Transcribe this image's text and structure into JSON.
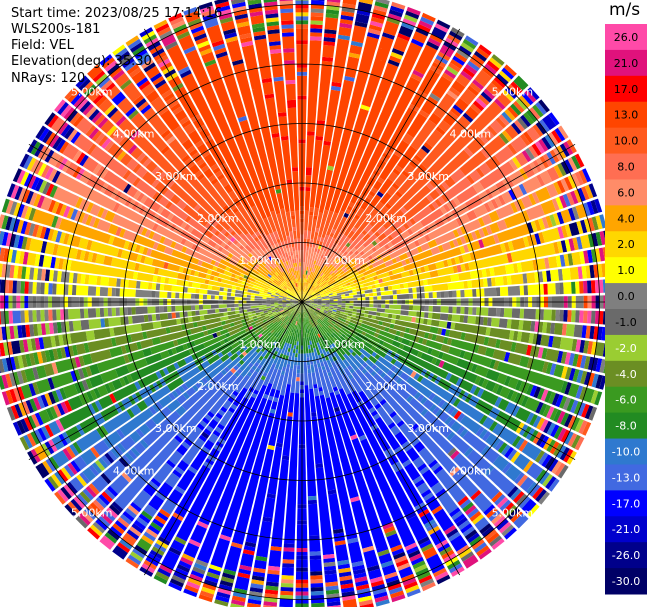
{
  "info": {
    "start_time": "Start time: 2023/08/25 17:14:16",
    "instrument": "WLS200s-181",
    "field": "Field: VEL",
    "elevation": "Elevation(deg): 35.30",
    "nrays": "NRays: 120"
  },
  "chart_data": {
    "type": "heatmap",
    "projection": "polar-ppi",
    "field": "VEL",
    "units": "m/s",
    "n_rays": 120,
    "range_rings_km": [
      1.0,
      2.0,
      3.0,
      4.0,
      5.0
    ],
    "ring_labels": [
      "1.00km",
      "2.00km",
      "3.00km",
      "4.00km",
      "5.00km"
    ],
    "max_range_km": 5.3,
    "radial_spokes_deg": [
      0,
      30,
      60,
      90,
      120,
      150,
      180,
      210,
      240,
      270,
      300,
      330
    ],
    "wind_pattern": {
      "toward_deg": 0,
      "max_speed_ms": 16,
      "coherent_range_km": 3.6,
      "description_values": "positive to north, negative to south"
    },
    "colorbar": {
      "ticks": [
        "26.0",
        "21.0",
        "17.0",
        "13.0",
        "10.0",
        "8.0",
        "6.0",
        "4.0",
        "2.0",
        "1.0",
        "0.0",
        "-1.0",
        "-2.0",
        "-4.0",
        "-6.0",
        "-8.0",
        "-10.0",
        "-13.0",
        "-17.0",
        "-21.0",
        "-26.0",
        "-30.0"
      ],
      "bins": [
        {
          "min": 26,
          "max": 30,
          "color": "#ff4aa8"
        },
        {
          "min": 21,
          "max": 26,
          "color": "#e0127c"
        },
        {
          "min": 17,
          "max": 21,
          "color": "#ff0000"
        },
        {
          "min": 13,
          "max": 17,
          "color": "#ff4500"
        },
        {
          "min": 10,
          "max": 13,
          "color": "#ff5a1e"
        },
        {
          "min": 8,
          "max": 10,
          "color": "#ff6e52"
        },
        {
          "min": 6,
          "max": 8,
          "color": "#ff8c68"
        },
        {
          "min": 4,
          "max": 6,
          "color": "#ffa500"
        },
        {
          "min": 2,
          "max": 4,
          "color": "#ffd700"
        },
        {
          "min": 1,
          "max": 2,
          "color": "#ffff00"
        },
        {
          "min": 0,
          "max": 1,
          "color": "#7f7f7f"
        },
        {
          "min": -1,
          "max": 0,
          "color": "#6a6a6a"
        },
        {
          "min": -2,
          "max": -1,
          "color": "#9acd32"
        },
        {
          "min": -4,
          "max": -2,
          "color": "#6b8e23"
        },
        {
          "min": -6,
          "max": -4,
          "color": "#3a9a20"
        },
        {
          "min": -8,
          "max": -6,
          "color": "#228b22"
        },
        {
          "min": -10,
          "max": -8,
          "color": "#2f79cf"
        },
        {
          "min": -13,
          "max": -10,
          "color": "#4169e1"
        },
        {
          "min": -17,
          "max": -13,
          "color": "#0000ff"
        },
        {
          "min": -21,
          "max": -17,
          "color": "#0000cd"
        },
        {
          "min": -26,
          "max": -21,
          "color": "#00008b"
        },
        {
          "min": -30,
          "max": -26,
          "color": "#000066"
        }
      ]
    }
  }
}
